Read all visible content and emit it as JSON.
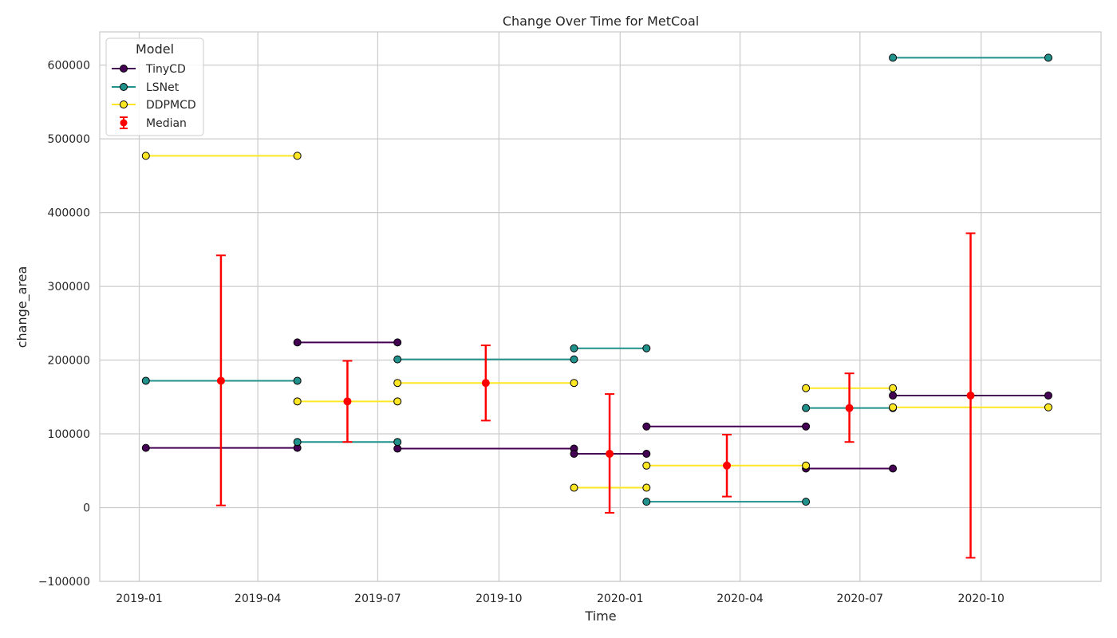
{
  "chart_data": {
    "type": "line",
    "title": "Change Over Time for MetCoal",
    "xlabel": "Time",
    "ylabel": "change_area",
    "xlim": [
      "2018-12-02",
      "2020-12-31"
    ],
    "ylim": [
      -100000,
      645000
    ],
    "grid": true,
    "legend_position": "top-left",
    "legend_title": "Model",
    "x_ticks": [
      "2019-01-01",
      "2019-04-01",
      "2019-07-01",
      "2019-10-01",
      "2020-01-01",
      "2020-04-01",
      "2020-07-01",
      "2020-10-01"
    ],
    "x_tick_labels": [
      "2019-01",
      "2019-04",
      "2019-07",
      "2019-10",
      "2020-01",
      "2020-04",
      "2020-07",
      "2020-10"
    ],
    "y_ticks": [
      -100000,
      0,
      100000,
      200000,
      300000,
      400000,
      500000,
      600000
    ],
    "y_tick_labels": [
      "−100000",
      "0",
      "100000",
      "200000",
      "300000",
      "400000",
      "500000",
      "600000"
    ],
    "series": [
      {
        "name": "TinyCD",
        "color": "#440154",
        "segments": [
          [
            [
              "2019-01-06",
              81000
            ],
            [
              "2019-05-01",
              81000
            ]
          ],
          [
            [
              "2019-05-01",
              224000
            ],
            [
              "2019-07-16",
              224000
            ]
          ],
          [
            [
              "2019-07-16",
              80000
            ],
            [
              "2019-11-27",
              80000
            ]
          ],
          [
            [
              "2019-11-27",
              73000
            ],
            [
              "2020-01-21",
              73000
            ]
          ],
          [
            [
              "2020-01-21",
              110000
            ],
            [
              "2020-05-21",
              110000
            ]
          ],
          [
            [
              "2020-05-21",
              53000
            ],
            [
              "2020-07-26",
              53000
            ]
          ],
          [
            [
              "2020-07-26",
              152000
            ],
            [
              "2020-11-21",
              152000
            ]
          ]
        ]
      },
      {
        "name": "LSNet",
        "color": "#21918c",
        "segments": [
          [
            [
              "2019-01-06",
              172000
            ],
            [
              "2019-05-01",
              172000
            ]
          ],
          [
            [
              "2019-05-01",
              89000
            ],
            [
              "2019-07-16",
              89000
            ]
          ],
          [
            [
              "2019-07-16",
              201000
            ],
            [
              "2019-11-27",
              201000
            ]
          ],
          [
            [
              "2019-11-27",
              216000
            ],
            [
              "2020-01-21",
              216000
            ]
          ],
          [
            [
              "2020-01-21",
              8000
            ],
            [
              "2020-05-21",
              8000
            ]
          ],
          [
            [
              "2020-05-21",
              135000
            ],
            [
              "2020-07-26",
              135000
            ]
          ],
          [
            [
              "2020-07-26",
              610000
            ],
            [
              "2020-11-21",
              610000
            ]
          ]
        ]
      },
      {
        "name": "DDPMCD",
        "color": "#fde725",
        "segments": [
          [
            [
              "2019-01-06",
              477000
            ],
            [
              "2019-05-01",
              477000
            ]
          ],
          [
            [
              "2019-05-01",
              144000
            ],
            [
              "2019-07-16",
              144000
            ]
          ],
          [
            [
              "2019-07-16",
              169000
            ],
            [
              "2019-11-27",
              169000
            ]
          ],
          [
            [
              "2019-11-27",
              27000
            ],
            [
              "2020-01-21",
              27000
            ]
          ],
          [
            [
              "2020-01-21",
              57000
            ],
            [
              "2020-05-21",
              57000
            ]
          ],
          [
            [
              "2020-05-21",
              162000
            ],
            [
              "2020-07-26",
              162000
            ]
          ],
          [
            [
              "2020-07-26",
              136000
            ],
            [
              "2020-11-21",
              136000
            ]
          ]
        ]
      }
    ],
    "median": {
      "name": "Median",
      "color": "#ff0000",
      "points": [
        {
          "x": "2019-03-04",
          "y": 172000,
          "low": 3000,
          "high": 342000
        },
        {
          "x": "2019-06-08",
          "y": 144000,
          "low": 89000,
          "high": 199000
        },
        {
          "x": "2019-09-21",
          "y": 169000,
          "low": 118000,
          "high": 220000
        },
        {
          "x": "2019-12-24",
          "y": 73000,
          "low": -7000,
          "high": 154000
        },
        {
          "x": "2020-03-22",
          "y": 57000,
          "low": 15000,
          "high": 99000
        },
        {
          "x": "2020-06-23",
          "y": 135000,
          "low": 89000,
          "high": 182000
        },
        {
          "x": "2020-09-23",
          "y": 152000,
          "low": -68000,
          "high": 372000
        }
      ]
    }
  }
}
